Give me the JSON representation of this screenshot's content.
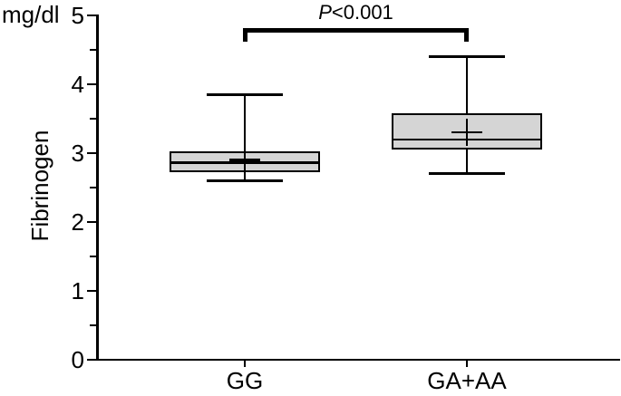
{
  "chart_data": {
    "type": "box",
    "title": "",
    "ylabel": "Fibrinogen",
    "units": "mg/dl",
    "xlabel": "",
    "ylim": [
      0,
      5
    ],
    "ytick_major": [
      0,
      1,
      2,
      3,
      4,
      5
    ],
    "ytick_minor": [
      0.5,
      1.5,
      2.5,
      3.5,
      4.5
    ],
    "grid": "off",
    "legend": "none",
    "categories": [
      "GG",
      "GA+AA"
    ],
    "series": [
      {
        "category": "GG",
        "whisker_low": 2.6,
        "q1": 2.72,
        "median": 2.86,
        "mean": 2.9,
        "q3": 3.02,
        "whisker_high": 3.85
      },
      {
        "category": "GA+AA",
        "whisker_low": 2.7,
        "q1": 3.05,
        "median": 3.2,
        "mean": 3.3,
        "q3": 3.58,
        "whisker_high": 4.4
      }
    ],
    "annotation": {
      "p_symbol": "P",
      "p_value_text": "<0.001",
      "connects": [
        "GG",
        "GA+AA"
      ]
    },
    "colors": {
      "box_fill": "#d5d5d5",
      "line": "#000000",
      "background": "#ffffff"
    }
  }
}
